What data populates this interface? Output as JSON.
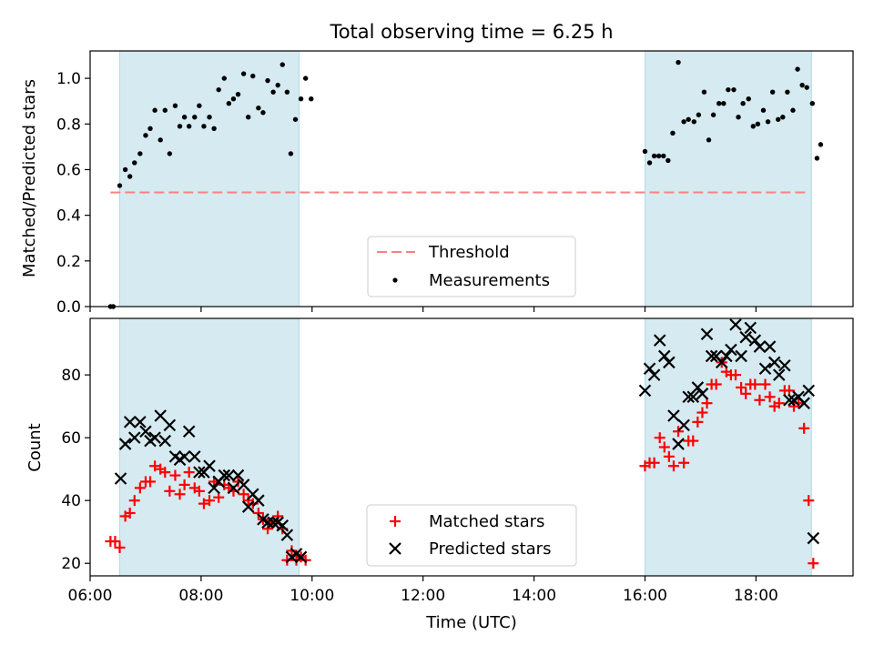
{
  "chart_data": [
    {
      "type": "scatter",
      "title": "Total observing time = 6.25 h",
      "ylabel": "Matched/Predicted stars",
      "xlabel": "",
      "xlim": [
        "06:00",
        "19:45"
      ],
      "ylim": [
        0,
        1.12
      ],
      "yticks": [
        0.0,
        0.2,
        0.4,
        0.6,
        0.8,
        1.0
      ],
      "ytick_labels": [
        "0.0",
        "0.2",
        "0.4",
        "0.6",
        "0.8",
        "1.0"
      ],
      "shaded_intervals": [
        [
          "06:32",
          "09:46"
        ],
        [
          "16:00",
          "19:00"
        ]
      ],
      "threshold": {
        "name": "Threshold",
        "value": 0.5,
        "x_range": [
          "06:22",
          "18:58"
        ],
        "color": "#ff8080"
      },
      "series": [
        {
          "name": "Measurements",
          "marker": "dot",
          "color": "#000000",
          "points": [
            [
              "06:22",
              0.0
            ],
            [
              "06:25",
              0.0
            ],
            [
              "06:32",
              0.53
            ],
            [
              "06:38",
              0.6
            ],
            [
              "06:43",
              0.57
            ],
            [
              "06:48",
              0.63
            ],
            [
              "06:54",
              0.67
            ],
            [
              "07:00",
              0.75
            ],
            [
              "07:05",
              0.78
            ],
            [
              "07:10",
              0.86
            ],
            [
              "07:16",
              0.73
            ],
            [
              "07:21",
              0.86
            ],
            [
              "07:26",
              0.67
            ],
            [
              "07:32",
              0.88
            ],
            [
              "07:37",
              0.79
            ],
            [
              "07:42",
              0.83
            ],
            [
              "07:47",
              0.79
            ],
            [
              "07:53",
              0.83
            ],
            [
              "07:58",
              0.88
            ],
            [
              "08:03",
              0.79
            ],
            [
              "08:09",
              0.83
            ],
            [
              "08:14",
              0.78
            ],
            [
              "08:19",
              0.95
            ],
            [
              "08:25",
              1.0
            ],
            [
              "08:30",
              0.89
            ],
            [
              "08:35",
              0.91
            ],
            [
              "08:40",
              0.93
            ],
            [
              "08:46",
              1.02
            ],
            [
              "08:51",
              0.83
            ],
            [
              "08:56",
              1.01
            ],
            [
              "09:02",
              0.87
            ],
            [
              "09:07",
              0.85
            ],
            [
              "09:12",
              0.99
            ],
            [
              "09:18",
              0.94
            ],
            [
              "09:23",
              0.97
            ],
            [
              "09:28",
              1.06
            ],
            [
              "09:33",
              0.94
            ],
            [
              "09:37",
              0.67
            ],
            [
              "09:42",
              0.82
            ],
            [
              "09:48",
              0.91
            ],
            [
              "09:53",
              1.0
            ],
            [
              "09:59",
              0.91
            ],
            [
              "16:00",
              0.68
            ],
            [
              "16:05",
              0.63
            ],
            [
              "16:10",
              0.66
            ],
            [
              "16:15",
              0.66
            ],
            [
              "16:20",
              0.66
            ],
            [
              "16:25",
              0.64
            ],
            [
              "16:30",
              0.76
            ],
            [
              "16:36",
              1.07
            ],
            [
              "16:42",
              0.81
            ],
            [
              "16:47",
              0.82
            ],
            [
              "16:53",
              0.81
            ],
            [
              "16:58",
              0.84
            ],
            [
              "17:04",
              0.94
            ],
            [
              "17:09",
              0.73
            ],
            [
              "17:14",
              0.84
            ],
            [
              "17:20",
              0.89
            ],
            [
              "17:25",
              0.89
            ],
            [
              "17:30",
              0.95
            ],
            [
              "17:36",
              0.95
            ],
            [
              "17:41",
              0.83
            ],
            [
              "17:46",
              0.89
            ],
            [
              "17:52",
              0.91
            ],
            [
              "17:57",
              0.79
            ],
            [
              "18:02",
              0.8
            ],
            [
              "18:08",
              0.86
            ],
            [
              "18:13",
              0.81
            ],
            [
              "18:18",
              0.94
            ],
            [
              "18:24",
              0.82
            ],
            [
              "18:29",
              0.83
            ],
            [
              "18:34",
              0.94
            ],
            [
              "18:40",
              0.86
            ],
            [
              "18:45",
              1.04
            ],
            [
              "18:50",
              0.97
            ],
            [
              "18:55",
              0.96
            ],
            [
              "19:01",
              0.89
            ],
            [
              "19:06",
              0.65
            ],
            [
              "19:10",
              0.71
            ]
          ]
        }
      ],
      "legend": {
        "position": "lower-center",
        "entries": [
          "Threshold",
          "Measurements"
        ]
      }
    },
    {
      "type": "scatter",
      "title": "",
      "ylabel": "Count",
      "xlabel": "Time (UTC)",
      "xlim": [
        "06:00",
        "19:45"
      ],
      "ylim": [
        16,
        98
      ],
      "yticks": [
        20,
        40,
        60,
        80
      ],
      "ytick_labels": [
        "20",
        "40",
        "60",
        "80"
      ],
      "xticks": [
        "06:00",
        "08:00",
        "10:00",
        "12:00",
        "14:00",
        "16:00",
        "18:00"
      ],
      "shaded_intervals": [
        [
          "06:32",
          "09:46"
        ],
        [
          "16:00",
          "19:00"
        ]
      ],
      "series": [
        {
          "name": "Matched stars",
          "marker": "plus",
          "color": "#ff0000",
          "points": [
            [
              "06:22",
              27
            ],
            [
              "06:27",
              27
            ],
            [
              "06:32",
              25
            ],
            [
              "06:38",
              35
            ],
            [
              "06:43",
              36
            ],
            [
              "06:48",
              40
            ],
            [
              "06:54",
              44
            ],
            [
              "07:00",
              46
            ],
            [
              "07:05",
              46
            ],
            [
              "07:10",
              51
            ],
            [
              "07:16",
              50
            ],
            [
              "07:21",
              49
            ],
            [
              "07:26",
              43
            ],
            [
              "07:32",
              48
            ],
            [
              "07:37",
              42
            ],
            [
              "07:42",
              45
            ],
            [
              "07:47",
              49
            ],
            [
              "07:53",
              44
            ],
            [
              "07:58",
              43
            ],
            [
              "08:03",
              39
            ],
            [
              "08:09",
              40
            ],
            [
              "08:14",
              46
            ],
            [
              "08:19",
              41
            ],
            [
              "08:25",
              45
            ],
            [
              "08:30",
              44
            ],
            [
              "08:35",
              43
            ],
            [
              "08:40",
              46
            ],
            [
              "08:46",
              42
            ],
            [
              "08:51",
              40
            ],
            [
              "08:56",
              39
            ],
            [
              "09:02",
              36
            ],
            [
              "09:07",
              34
            ],
            [
              "09:12",
              31
            ],
            [
              "09:18",
              33
            ],
            [
              "09:23",
              35
            ],
            [
              "09:28",
              31
            ],
            [
              "09:33",
              21
            ],
            [
              "09:38",
              24
            ],
            [
              "09:43",
              21
            ],
            [
              "09:48",
              22
            ],
            [
              "09:53",
              21
            ],
            [
              "16:00",
              51
            ],
            [
              "16:05",
              52
            ],
            [
              "16:10",
              52
            ],
            [
              "16:16",
              60
            ],
            [
              "16:21",
              57
            ],
            [
              "16:26",
              54
            ],
            [
              "16:31",
              51
            ],
            [
              "16:36",
              62
            ],
            [
              "16:42",
              52
            ],
            [
              "16:47",
              59
            ],
            [
              "16:52",
              59
            ],
            [
              "16:57",
              65
            ],
            [
              "17:02",
              68
            ],
            [
              "17:07",
              71
            ],
            [
              "17:12",
              77
            ],
            [
              "17:17",
              77
            ],
            [
              "17:23",
              84
            ],
            [
              "17:28",
              81
            ],
            [
              "17:33",
              80
            ],
            [
              "17:38",
              80
            ],
            [
              "17:44",
              76
            ],
            [
              "17:49",
              74
            ],
            [
              "17:54",
              77
            ],
            [
              "17:59",
              77
            ],
            [
              "18:04",
              72
            ],
            [
              "18:10",
              77
            ],
            [
              "18:15",
              73
            ],
            [
              "18:20",
              70
            ],
            [
              "18:25",
              71
            ],
            [
              "18:31",
              75
            ],
            [
              "18:36",
              75
            ],
            [
              "18:41",
              70
            ],
            [
              "18:46",
              71
            ],
            [
              "18:52",
              63
            ],
            [
              "18:57",
              40
            ],
            [
              "19:02",
              20
            ]
          ]
        },
        {
          "name": "Predicted stars",
          "marker": "x",
          "color": "#000000",
          "points": [
            [
              "06:33",
              47
            ],
            [
              "06:38",
              58
            ],
            [
              "06:43",
              65
            ],
            [
              "06:48",
              60
            ],
            [
              "06:54",
              65
            ],
            [
              "07:00",
              62
            ],
            [
              "07:05",
              59
            ],
            [
              "07:10",
              60
            ],
            [
              "07:16",
              67
            ],
            [
              "07:21",
              59
            ],
            [
              "07:26",
              64
            ],
            [
              "07:32",
              54
            ],
            [
              "07:37",
              53
            ],
            [
              "07:42",
              54
            ],
            [
              "07:47",
              62
            ],
            [
              "07:53",
              54
            ],
            [
              "07:58",
              49
            ],
            [
              "08:03",
              49
            ],
            [
              "08:09",
              51
            ],
            [
              "08:14",
              44
            ],
            [
              "08:19",
              46
            ],
            [
              "08:25",
              48
            ],
            [
              "08:30",
              48
            ],
            [
              "08:35",
              44
            ],
            [
              "08:40",
              48
            ],
            [
              "08:46",
              45
            ],
            [
              "08:51",
              38
            ],
            [
              "08:56",
              42
            ],
            [
              "09:02",
              40
            ],
            [
              "09:07",
              34
            ],
            [
              "09:12",
              33
            ],
            [
              "09:18",
              33
            ],
            [
              "09:23",
              33
            ],
            [
              "09:28",
              32
            ],
            [
              "09:33",
              29
            ],
            [
              "09:38",
              22
            ],
            [
              "09:43",
              23
            ],
            [
              "09:48",
              22
            ],
            [
              "16:00",
              75
            ],
            [
              "16:05",
              82
            ],
            [
              "16:10",
              80
            ],
            [
              "16:16",
              91
            ],
            [
              "16:21",
              86
            ],
            [
              "16:26",
              84
            ],
            [
              "16:31",
              67
            ],
            [
              "16:36",
              58
            ],
            [
              "16:42",
              64
            ],
            [
              "16:47",
              73
            ],
            [
              "16:52",
              73
            ],
            [
              "16:57",
              76
            ],
            [
              "17:02",
              74
            ],
            [
              "17:07",
              93
            ],
            [
              "17:12",
              86
            ],
            [
              "17:17",
              86
            ],
            [
              "17:23",
              84
            ],
            [
              "17:28",
              86
            ],
            [
              "17:33",
              88
            ],
            [
              "17:38",
              96
            ],
            [
              "17:44",
              86
            ],
            [
              "17:49",
              92
            ],
            [
              "17:54",
              95
            ],
            [
              "17:59",
              91
            ],
            [
              "18:04",
              89
            ],
            [
              "18:10",
              82
            ],
            [
              "18:15",
              89
            ],
            [
              "18:20",
              84
            ],
            [
              "18:25",
              80
            ],
            [
              "18:31",
              83
            ],
            [
              "18:36",
              72
            ],
            [
              "18:41",
              72
            ],
            [
              "18:46",
              73
            ],
            [
              "18:52",
              71
            ],
            [
              "18:57",
              75
            ],
            [
              "19:02",
              28
            ]
          ]
        }
      ],
      "legend": {
        "position": "lower-center",
        "entries": [
          "Matched stars",
          "Predicted stars"
        ]
      }
    }
  ],
  "colors": {
    "shade": "#d5eaf1",
    "shade_edge": "#b0dbe3",
    "axis": "#000000"
  }
}
